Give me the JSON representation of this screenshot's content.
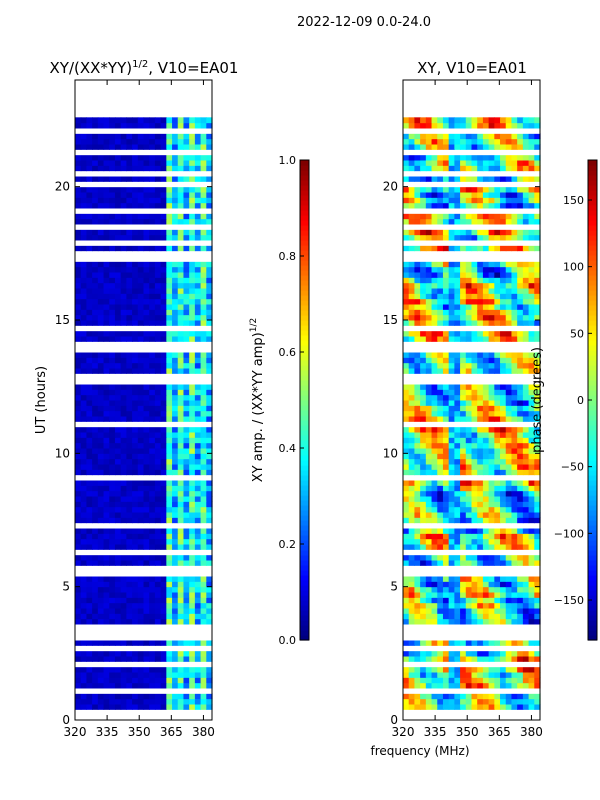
{
  "suptitle": "2022-12-09 0.0-24.0",
  "colors": {
    "jet": [
      "#00007f",
      "#0000ff",
      "#007fff",
      "#00ffff",
      "#7fff7f",
      "#ffff00",
      "#ff7f00",
      "#ff0000",
      "#7f0000"
    ],
    "gap": "#ffffff",
    "axis": "#000000"
  },
  "chart_data": [
    {
      "id": "amp-ratio",
      "type": "heatmap",
      "title_main": "XY/(XX*YY)",
      "title_sup": "1/2",
      "title_rest": ", V10=EA01",
      "xlabel": "",
      "ylabel": "UT (hours)",
      "xlim": [
        320,
        384
      ],
      "ylim": [
        0,
        24
      ],
      "data_ylim": [
        0,
        22.6
      ],
      "xticks": [
        320,
        335,
        350,
        365,
        380
      ],
      "yticks": [
        0,
        5,
        10,
        15,
        20
      ],
      "colorbar": {
        "label_main": "XY amp. / (XX*YY amp)",
        "label_sup": "1/2",
        "range": [
          0.0,
          1.0
        ],
        "ticks": [
          0.0,
          0.2,
          0.4,
          0.6,
          0.8,
          1.0
        ],
        "tick_labels": [
          "0.0",
          "0.2",
          "0.4",
          "0.6",
          "0.8",
          "1.0"
        ]
      },
      "pattern": "low-amplitude background (~0.05) with bright channel stripes near 362-382 MHz (0.3-0.55)",
      "gap_ut_bands": [
        [
          3.0,
          3.6
        ],
        [
          12.8,
          13.0
        ],
        [
          14.5,
          14.7
        ],
        [
          17.2,
          17.5
        ],
        [
          20.4,
          20.6
        ]
      ]
    },
    {
      "id": "xy-phase",
      "type": "heatmap",
      "title_main": "XY, V10=EA01",
      "xlabel": "frequency (MHz)",
      "ylabel": "",
      "xlim": [
        320,
        384
      ],
      "ylim": [
        0,
        24
      ],
      "data_ylim": [
        0,
        22.6
      ],
      "xticks": [
        320,
        335,
        350,
        365,
        380
      ],
      "yticks": [
        0,
        5,
        10,
        15,
        20
      ],
      "colorbar": {
        "label_main": "phase (degrees)",
        "range": [
          -180,
          180
        ],
        "ticks": [
          -150,
          -100,
          -50,
          0,
          50,
          100,
          150
        ],
        "tick_labels": [
          "−150",
          "−100",
          "−50",
          "0",
          "50",
          "100",
          "150"
        ]
      },
      "pattern": "noisy phase values spanning -180 to 180 degrees with horizontal banding",
      "gap_ut_bands": [
        [
          3.0,
          3.6
        ],
        [
          12.8,
          13.0
        ],
        [
          14.5,
          14.7
        ],
        [
          17.2,
          17.5
        ],
        [
          20.4,
          20.6
        ]
      ]
    }
  ]
}
